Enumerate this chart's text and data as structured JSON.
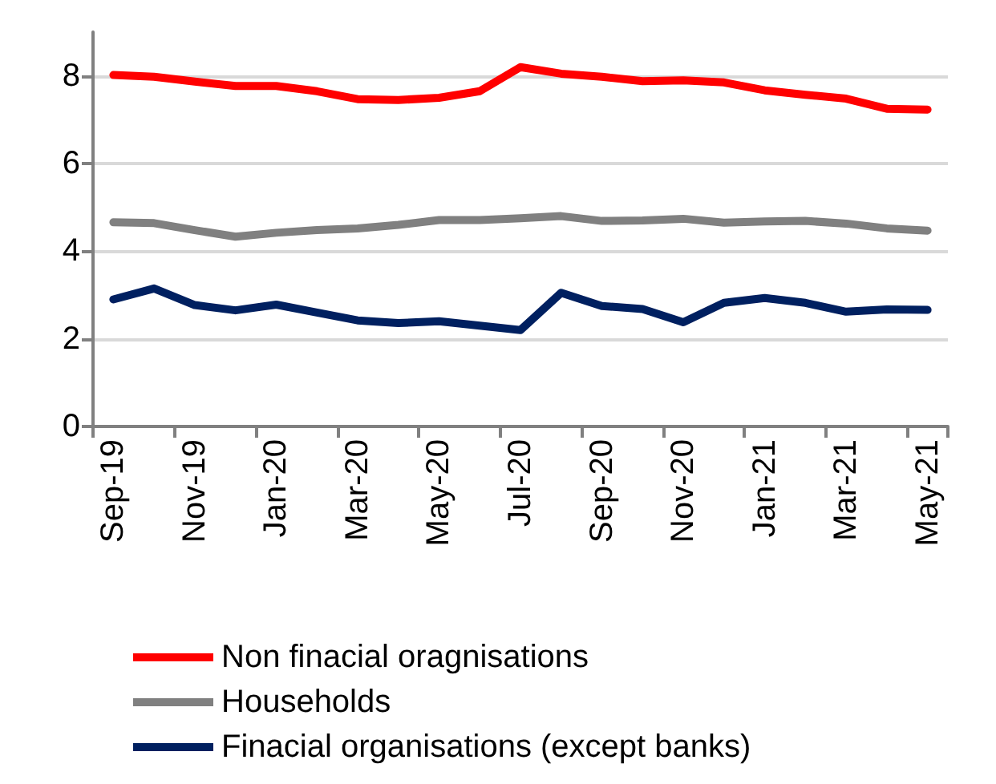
{
  "chart_data": {
    "type": "line",
    "categories": [
      "Sep-19",
      null,
      "Nov-19",
      null,
      "Jan-20",
      null,
      "Mar-20",
      null,
      "May-20",
      null,
      "Jul-20",
      null,
      "Sep-20",
      null,
      "Nov-20",
      null,
      "Jan-21",
      null,
      "Mar-21",
      null,
      "May-21"
    ],
    "series": [
      {
        "name": "Non finacial oragnisations",
        "color": "#ff0000",
        "values": [
          8.02,
          7.98,
          7.87,
          7.77,
          7.77,
          7.65,
          7.47,
          7.45,
          7.5,
          7.65,
          8.2,
          8.05,
          7.98,
          7.88,
          7.9,
          7.85,
          7.67,
          7.57,
          7.48,
          7.25,
          7.23
        ]
      },
      {
        "name": "Households",
        "color": "#808080",
        "values": [
          4.66,
          4.64,
          4.48,
          4.33,
          4.42,
          4.48,
          4.52,
          4.6,
          4.71,
          4.71,
          4.75,
          4.8,
          4.69,
          4.7,
          4.74,
          4.65,
          4.68,
          4.69,
          4.63,
          4.52,
          4.47
        ]
      },
      {
        "name": "Finacial organisations (except banks)",
        "color": "#002060",
        "values": [
          2.9,
          3.15,
          2.77,
          2.65,
          2.78,
          2.6,
          2.42,
          2.36,
          2.4,
          2.3,
          2.2,
          3.05,
          2.75,
          2.68,
          2.38,
          2.82,
          2.93,
          2.82,
          2.62,
          2.67,
          2.66
        ]
      }
    ],
    "ylim": [
      0,
      9
    ],
    "yticks": [
      0,
      2,
      4,
      6,
      8
    ],
    "grid": "y",
    "legend": "bottom",
    "marker": "none",
    "line_style": "solid"
  }
}
